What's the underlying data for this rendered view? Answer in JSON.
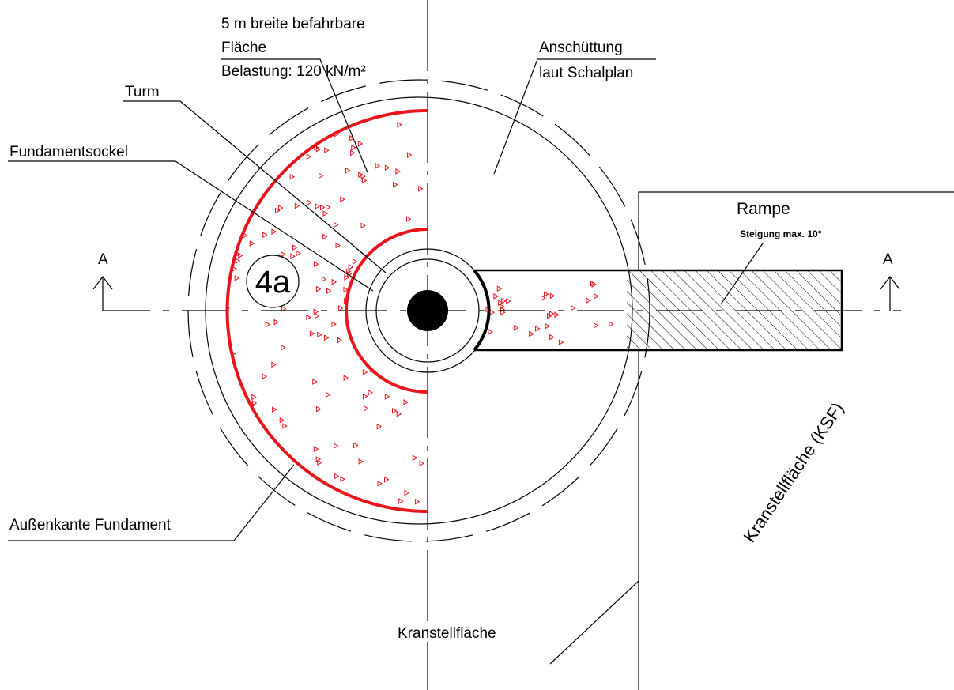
{
  "labels": {
    "flaeche": [
      "5 m breite befahrbare",
      "Fläche",
      "Belastung: 120 kN/m²"
    ],
    "anschuettung": [
      "Anschüttung",
      "laut Schalplan"
    ],
    "turm": "Turm",
    "fundamentsockel": "Fundamentsockel",
    "aussenkante": "Außenkante Fundament",
    "marker": "4a",
    "section_left": "A",
    "section_right": "A",
    "rampe": "Rampe",
    "steigung": "Steigung max. 10°",
    "kranstellflaeche": "Kranstellfläche",
    "ksf": "Kranstellfläche (KSF)"
  }
}
